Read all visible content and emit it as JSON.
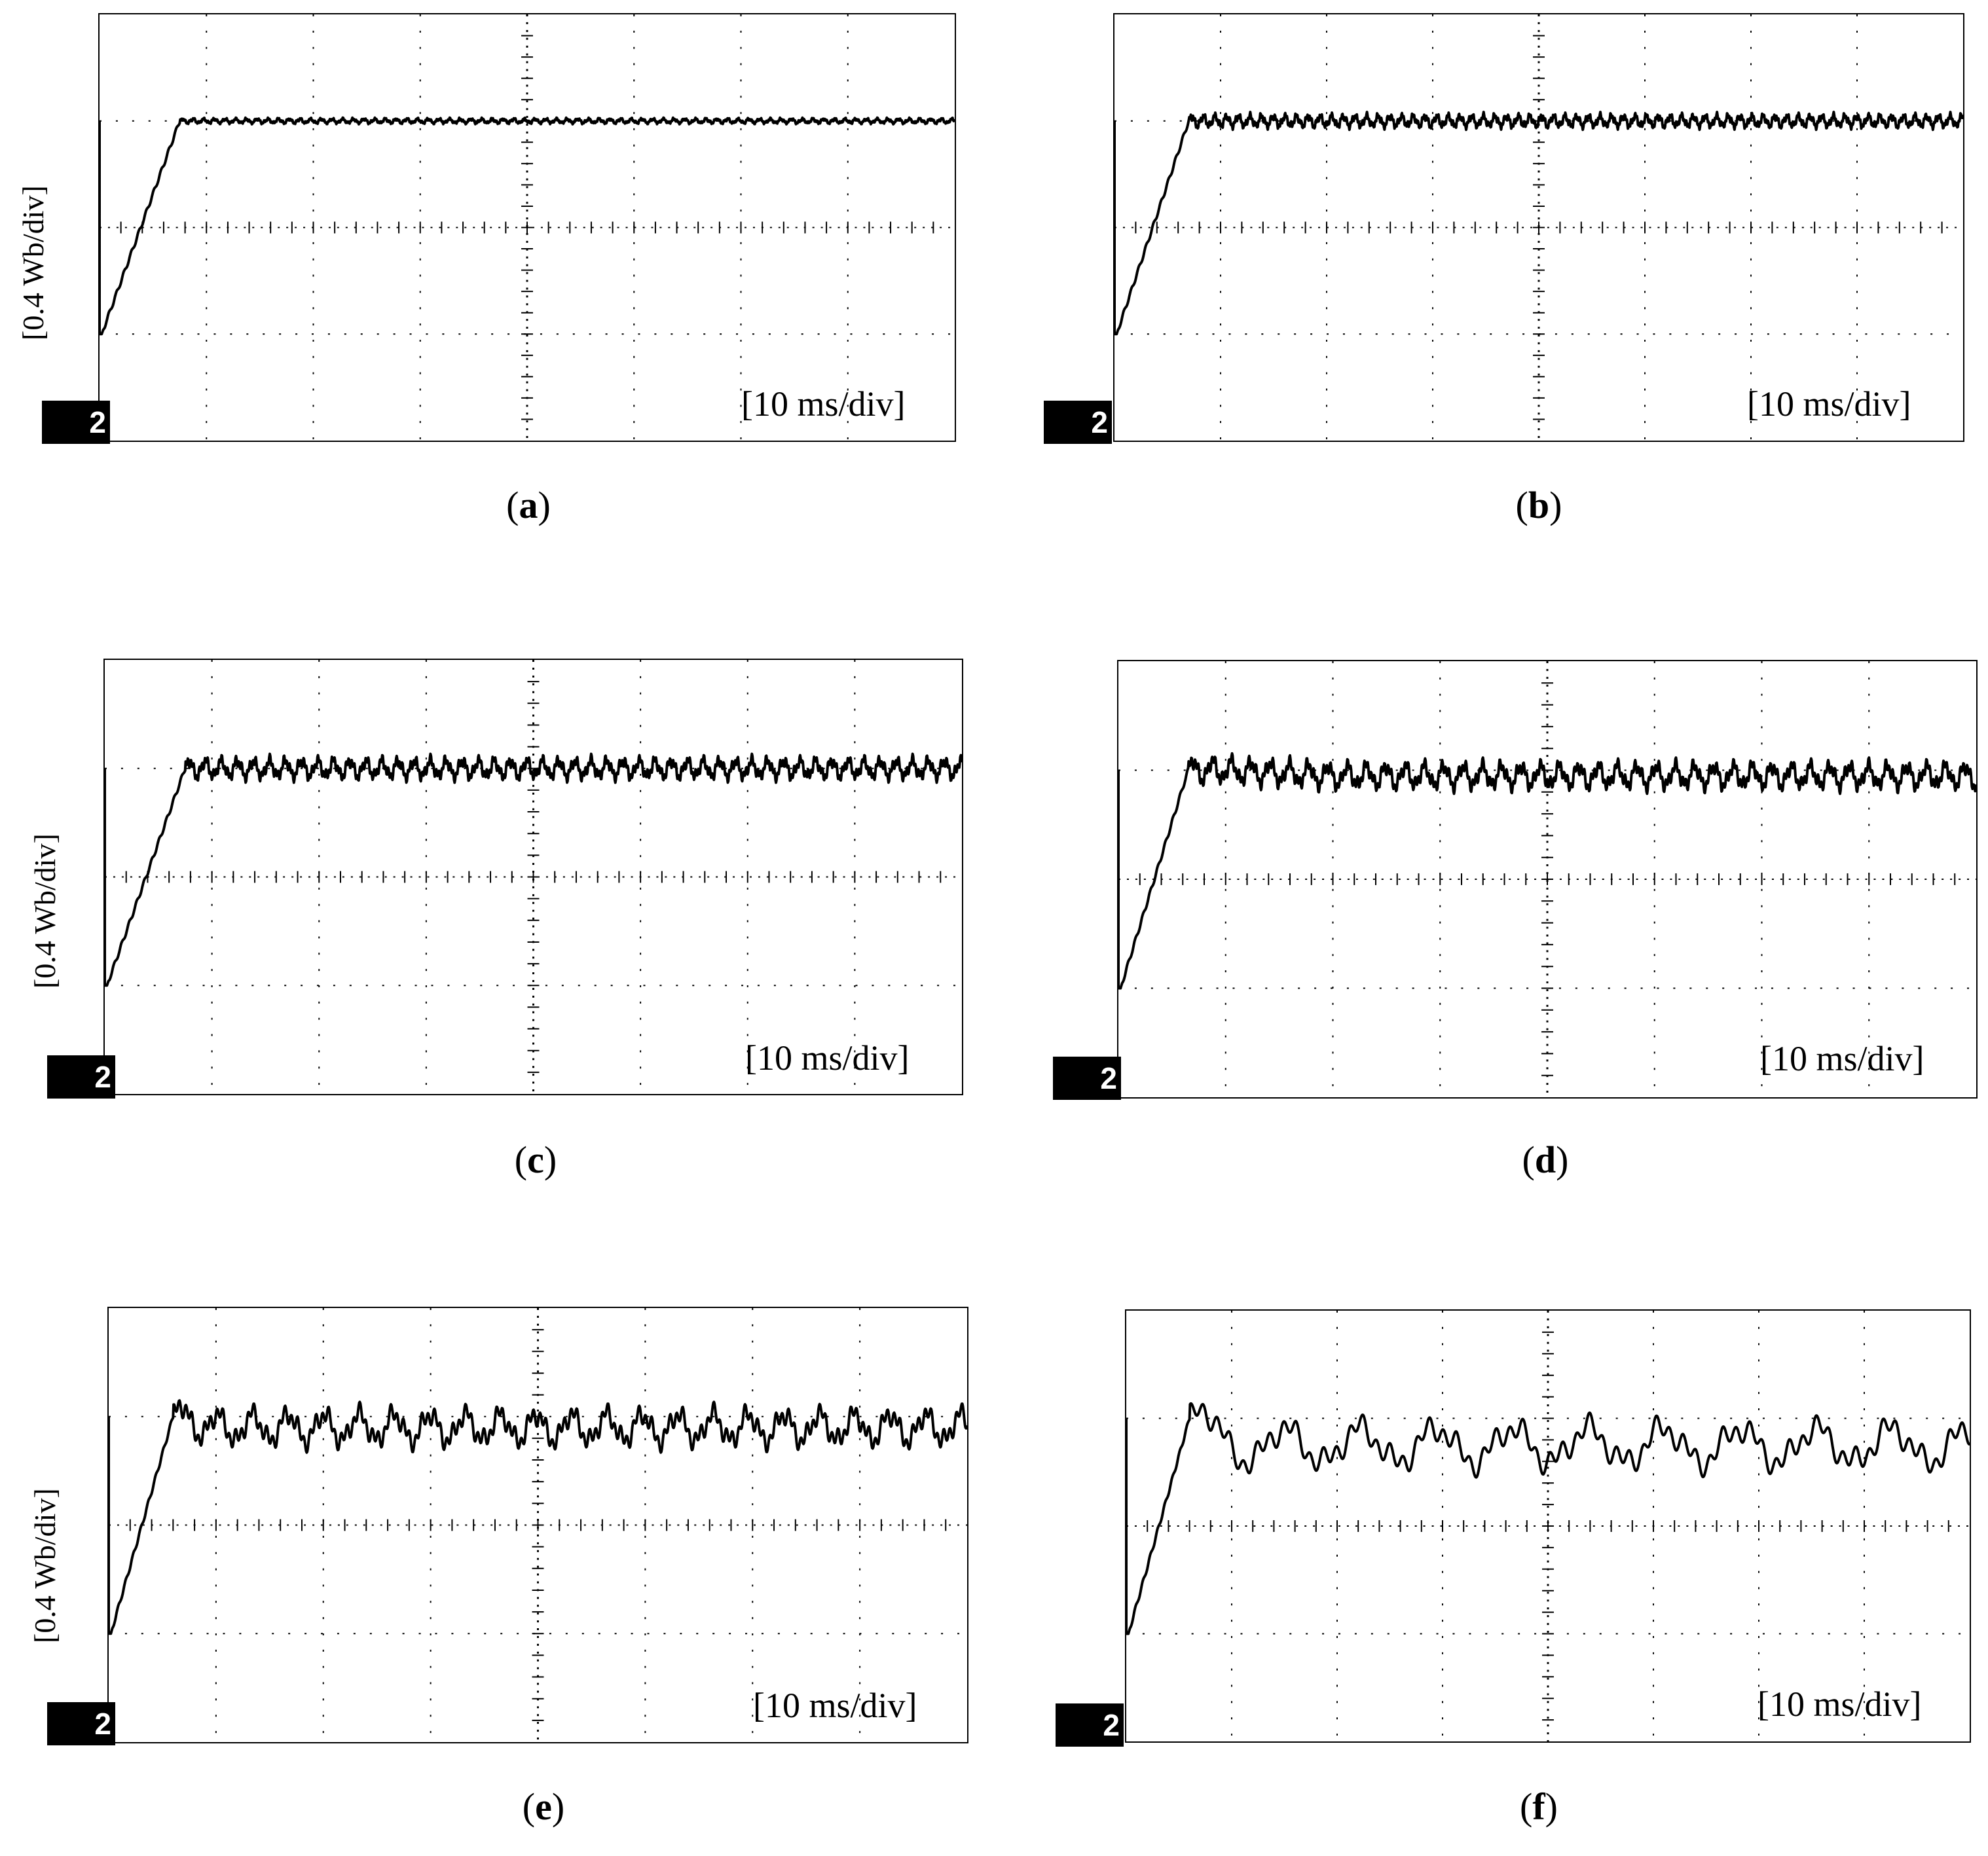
{
  "chart_data": [
    {
      "type": "line",
      "panel": "(a)",
      "ylabel": "[0.4 Wb/div]",
      "xlabel": "[10 ms/div]",
      "channel_marker": "2",
      "x_units": "ms",
      "y_units": "Wb",
      "xlim": [
        0,
        80
      ],
      "ylim": [
        -0.8,
        0.8
      ],
      "grid": true,
      "series": [
        {
          "x": [
            0,
            0.2,
            7.5,
            10,
            20,
            30,
            40,
            50,
            60,
            70,
            80
          ],
          "y": [
            -0.4,
            -0.4,
            0.4,
            0.4,
            0.4,
            0.4,
            0.4,
            0.4,
            0.4,
            0.4,
            0.4
          ]
        }
      ],
      "ripple_amplitude_wb": 0.01,
      "ripple_period_ms": 1
    },
    {
      "type": "line",
      "panel": "(b)",
      "ylabel": "",
      "xlabel": "[10 ms/div]",
      "channel_marker": "2",
      "x_units": "ms",
      "y_units": "Wb",
      "xlim": [
        0,
        80
      ],
      "ylim": [
        -0.8,
        0.8
      ],
      "grid": true,
      "series": [
        {
          "x": [
            0,
            0.2,
            7,
            10,
            20,
            30,
            40,
            50,
            60,
            70,
            80
          ],
          "y": [
            -0.4,
            -0.4,
            0.4,
            0.4,
            0.4,
            0.4,
            0.4,
            0.4,
            0.4,
            0.4,
            0.4
          ]
        }
      ],
      "ripple_amplitude_wb": 0.025,
      "ripple_period_ms": 1.1
    },
    {
      "type": "line",
      "panel": "(c)",
      "ylabel": "[0.4 Wb/div]",
      "xlabel": "[10 ms/div]",
      "channel_marker": "2",
      "x_units": "ms",
      "y_units": "Wb",
      "xlim": [
        0,
        80
      ],
      "ylim": [
        -0.8,
        0.8
      ],
      "grid": true,
      "series": [
        {
          "x": [
            0,
            0.2,
            7.5,
            10,
            20,
            30,
            40,
            50,
            60,
            70,
            80
          ],
          "y": [
            -0.4,
            -0.4,
            0.4,
            0.4,
            0.4,
            0.4,
            0.4,
            0.4,
            0.4,
            0.4,
            0.4
          ]
        }
      ],
      "ripple_amplitude_wb": 0.04,
      "ripple_period_ms": 1.5
    },
    {
      "type": "line",
      "panel": "(d)",
      "ylabel": "",
      "xlabel": "[10 ms/div]",
      "channel_marker": "2",
      "x_units": "ms",
      "y_units": "Wb",
      "xlim": [
        0,
        80
      ],
      "ylim": [
        -0.8,
        0.8
      ],
      "grid": true,
      "series": [
        {
          "x": [
            0,
            0.2,
            6.5,
            10,
            20,
            30,
            40,
            50,
            60,
            70,
            80
          ],
          "y": [
            -0.4,
            -0.4,
            0.4,
            0.4,
            0.38,
            0.38,
            0.38,
            0.38,
            0.38,
            0.38,
            0.38
          ]
        }
      ],
      "ripple_amplitude_wb": 0.05,
      "ripple_period_ms": 1.8
    },
    {
      "type": "line",
      "panel": "(e)",
      "ylabel": "[0.4 Wb/div]",
      "xlabel": "[10 ms/div]",
      "channel_marker": "2",
      "x_units": "ms",
      "y_units": "Wb",
      "xlim": [
        0,
        80
      ],
      "ylim": [
        -0.8,
        0.8
      ],
      "grid": true,
      "series": [
        {
          "x": [
            0,
            0.2,
            6,
            10,
            20,
            30,
            40,
            50,
            60,
            70,
            80
          ],
          "y": [
            -0.4,
            -0.4,
            0.4,
            0.36,
            0.36,
            0.36,
            0.36,
            0.36,
            0.36,
            0.36,
            0.36
          ]
        }
      ],
      "ripple_amplitude_wb": 0.07,
      "ripple_period_ms": 3.3
    },
    {
      "type": "line",
      "panel": "(f)",
      "ylabel": "",
      "xlabel": "[10 ms/div]",
      "channel_marker": "2",
      "x_units": "ms",
      "y_units": "Wb",
      "xlim": [
        0,
        80
      ],
      "ylim": [
        -0.8,
        0.8
      ],
      "grid": true,
      "series": [
        {
          "x": [
            0,
            0.2,
            6,
            10,
            20,
            30,
            40,
            50,
            60,
            70,
            80
          ],
          "y": [
            -0.4,
            -0.4,
            0.4,
            0.3,
            0.3,
            0.3,
            0.3,
            0.3,
            0.3,
            0.3,
            0.3
          ]
        }
      ],
      "ripple_amplitude_wb": 0.09,
      "ripple_period_ms": 7.2
    }
  ],
  "panels": [
    {
      "caption_letter": "a"
    },
    {
      "caption_letter": "b"
    },
    {
      "caption_letter": "c"
    },
    {
      "caption_letter": "d"
    },
    {
      "caption_letter": "e"
    },
    {
      "caption_letter": "f"
    }
  ],
  "colors": {
    "trace": "#000000",
    "grid": "#000000",
    "background": "#ffffff"
  }
}
